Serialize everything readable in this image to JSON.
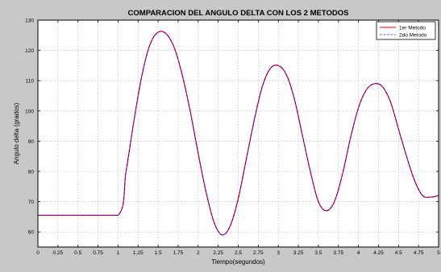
{
  "figure": {
    "background_color": "#c8c8c8",
    "axes_background_color": "#ffffff",
    "grid_color": "#b0b0b0"
  },
  "chart_data": {
    "type": "line",
    "title": "COMPARACION DEL ANGULO DELTA CON LOS 2 METODOS",
    "xlabel": "Tiempo(segundos)",
    "ylabel": "Angulo delta (grados)",
    "xlim": [
      0,
      5
    ],
    "ylim": [
      55,
      130
    ],
    "grid": true,
    "legend_position": "top-right",
    "x_ticks": [
      0,
      0.25,
      0.5,
      0.75,
      1,
      1.25,
      1.5,
      1.75,
      2,
      2.25,
      2.5,
      2.75,
      3,
      3.25,
      3.5,
      3.75,
      4,
      4.25,
      4.5,
      4.75,
      5
    ],
    "x_tick_labels": [
      "0",
      "0.25",
      "0.5",
      "0.75",
      "1",
      "1.25",
      "1.5",
      "1.75",
      "2",
      "2.25",
      "2.5",
      "2.75",
      "3",
      "3.25",
      "3.5",
      "3.75",
      "4",
      "4.25",
      "4.5",
      "4.75",
      "5"
    ],
    "y_ticks": [
      60,
      70,
      80,
      90,
      100,
      110,
      120,
      130
    ],
    "y_tick_labels": [
      "60",
      "70",
      "80",
      "90",
      "100",
      "110",
      "120",
      "130"
    ],
    "series": [
      {
        "name": "1er Metodo",
        "color": "#ff0000",
        "style": "solid",
        "x": [
          0,
          0.5,
          1.0,
          1.1,
          1.2,
          1.3,
          1.4,
          1.5,
          1.6,
          1.7,
          1.8,
          1.9,
          2.0,
          2.1,
          2.2,
          2.3,
          2.4,
          2.5,
          2.6,
          2.7,
          2.8,
          2.9,
          3.0,
          3.1,
          3.2,
          3.3,
          3.4,
          3.5,
          3.6,
          3.7,
          3.8,
          3.9,
          4.0,
          4.1,
          4.2,
          4.3,
          4.4,
          4.5,
          4.6,
          4.7,
          4.8,
          4.9,
          5.0
        ],
        "values": [
          65.5,
          65.5,
          65.5,
          80,
          97,
          112,
          122,
          126,
          125.5,
          121,
          112,
          100,
          86,
          73,
          63,
          59,
          62,
          71,
          84,
          97,
          108,
          114,
          115,
          112,
          104,
          92,
          80,
          70,
          67,
          70,
          79,
          91,
          101,
          107,
          109,
          108,
          103,
          94,
          85,
          77,
          72,
          71.5,
          72
        ]
      },
      {
        "name": "2do Metodo",
        "color": "#0000ff",
        "style": "dashed",
        "x": [
          0,
          0.5,
          1.0,
          1.1,
          1.2,
          1.3,
          1.4,
          1.5,
          1.6,
          1.7,
          1.8,
          1.9,
          2.0,
          2.1,
          2.2,
          2.3,
          2.4,
          2.5,
          2.6,
          2.7,
          2.8,
          2.9,
          3.0,
          3.1,
          3.2,
          3.3,
          3.4,
          3.5,
          3.6,
          3.7,
          3.8,
          3.9,
          4.0,
          4.1,
          4.2,
          4.3,
          4.4,
          4.5,
          4.6,
          4.7,
          4.8,
          4.9,
          5.0
        ],
        "values": [
          65.5,
          65.5,
          65.5,
          80,
          97,
          112,
          122,
          126,
          125.5,
          121,
          112,
          100,
          86,
          73,
          63,
          59,
          62,
          71,
          84,
          97,
          108,
          114,
          115,
          112,
          104,
          92,
          80,
          70,
          67,
          70,
          79,
          91,
          101,
          107,
          109,
          108,
          103,
          94,
          85,
          77,
          72,
          71.5,
          72
        ]
      }
    ]
  }
}
